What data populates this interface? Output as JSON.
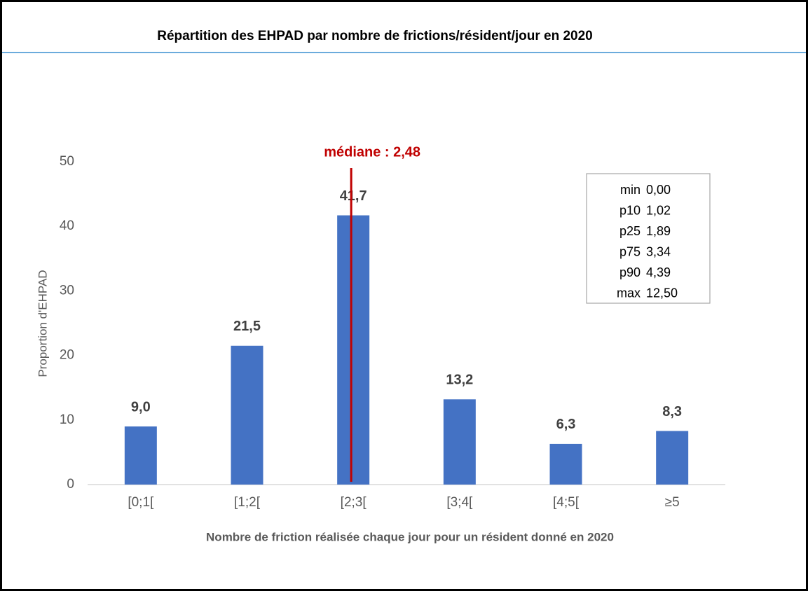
{
  "chart_data": {
    "type": "bar",
    "title": "Répartition des EHPAD par nombre de frictions/résident/jour en 2020",
    "categories": [
      "[0;1[",
      "[1;2[",
      "[2;3[",
      "[3;4[",
      "[4;5[",
      "≥5"
    ],
    "values": [
      9.0,
      21.5,
      41.7,
      13.2,
      6.3,
      8.3
    ],
    "value_labels": [
      "9,0",
      "21,5",
      "41,7",
      "13,2",
      "6,3",
      "8,3"
    ],
    "color": "#4472c4",
    "ylim": [
      0,
      50
    ],
    "yticks": [
      0,
      10,
      20,
      30,
      40,
      50
    ],
    "y_label": "Proportion d'EHPAD",
    "x_label": "Nombre de friction réalisée chaque jour pour un résident donné en 2020",
    "median": {
      "text": "médiane : 2,48",
      "value": 2.48,
      "color": "#c00000"
    },
    "stats": [
      {
        "name": "min",
        "value": 0.0,
        "label": "0,00"
      },
      {
        "name": "p10",
        "value": 1.02,
        "label": "1,02"
      },
      {
        "name": "p25",
        "value": 1.89,
        "label": "1,89"
      },
      {
        "name": "p75",
        "value": 3.34,
        "label": "3,34"
      },
      {
        "name": "p90",
        "value": 4.39,
        "label": "4,39"
      },
      {
        "name": "max",
        "value": 12.5,
        "label": "12,50"
      }
    ]
  }
}
